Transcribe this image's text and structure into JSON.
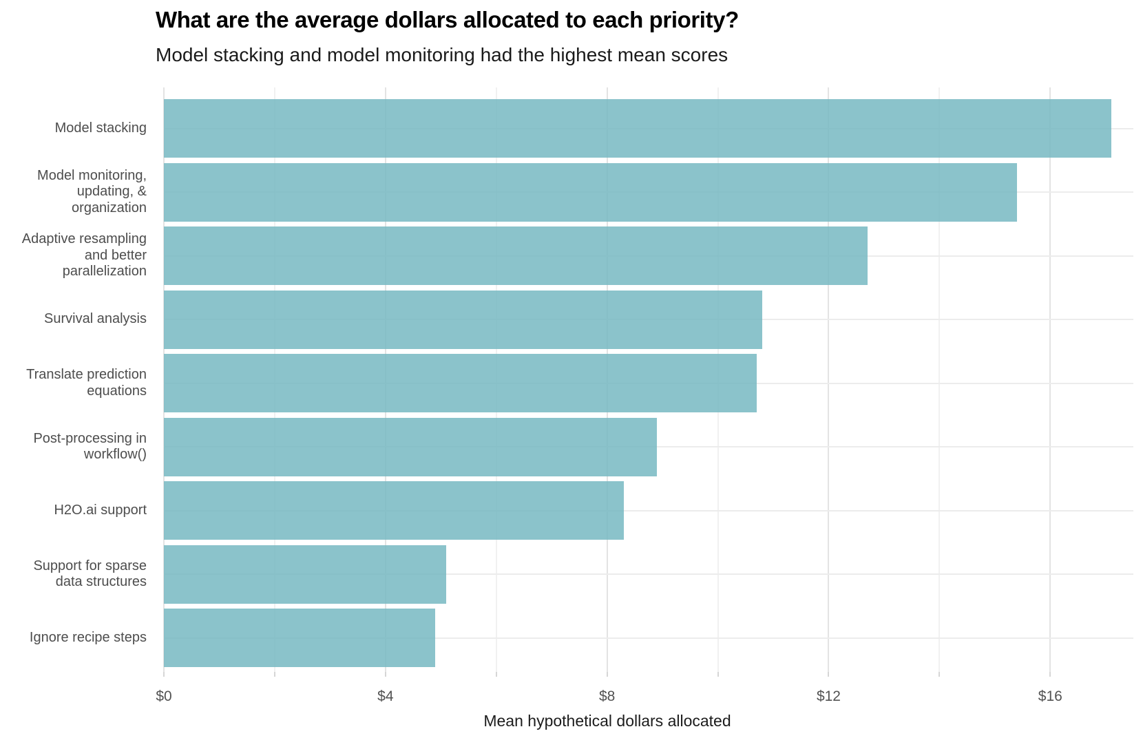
{
  "chart_data": {
    "type": "bar",
    "orientation": "horizontal",
    "title": "What are the average dollars allocated to each priority?",
    "subtitle": "Model stacking and model monitoring had the highest mean scores",
    "xlabel": "Mean hypothetical dollars allocated",
    "ylabel": "",
    "categories": [
      "Model stacking",
      "Model monitoring, updating, & organization",
      "Adaptive resampling and better parallelization",
      "Survival analysis",
      "Translate prediction equations",
      "Post-processing in workflow()",
      "H2O.ai support",
      "Support for sparse data structures",
      "Ignore recipe steps"
    ],
    "category_label_lines": [
      [
        "Model stacking"
      ],
      [
        "Model monitoring,",
        "updating, &",
        "organization"
      ],
      [
        "Adaptive resampling",
        "and better",
        "parallelization"
      ],
      [
        "Survival analysis"
      ],
      [
        "Translate prediction",
        "equations"
      ],
      [
        "Post-processing in",
        "workflow()"
      ],
      [
        "H2O.ai support"
      ],
      [
        "Support for sparse",
        "data structures"
      ],
      [
        "Ignore recipe steps"
      ]
    ],
    "values": [
      17.1,
      15.4,
      12.7,
      10.8,
      10.7,
      8.9,
      8.3,
      5.1,
      4.9
    ],
    "xlim": [
      0,
      17.5
    ],
    "x_major_ticks": [
      0,
      4,
      8,
      12,
      16
    ],
    "x_major_tick_labels": [
      "$0",
      "$4",
      "$8",
      "$12",
      "$16"
    ],
    "x_minor_ticks": [
      2,
      6,
      10,
      14
    ],
    "grid": true,
    "legend": "none",
    "colors": {
      "bar": "#77b8c2",
      "bar_alpha": 0.85,
      "grid_major": "#e3e3e3",
      "grid_minor": "#f1f1f1",
      "grid_horizontal": "#ececec",
      "tick_mark": "#d6d6d6",
      "tick_label": "#525252",
      "category_label": "#4d4d4d",
      "axis_title": "#1c1c1c",
      "title": "#000000",
      "subtitle": "#1a1a1a",
      "background": "#ffffff"
    }
  }
}
